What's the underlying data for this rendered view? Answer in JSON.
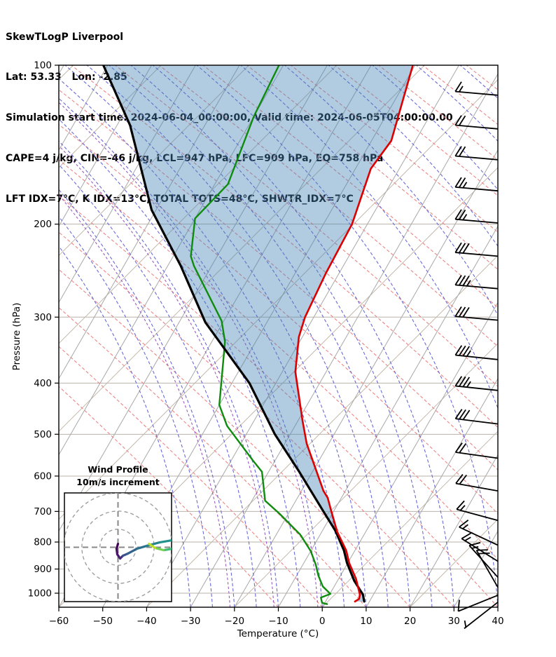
{
  "header": {
    "lines": [
      "SkewTLogP Liverpool",
      "Lat: 53.33   Lon: -2.85",
      "Simulation start time: 2024-06-04_00:00:00, Valid time: 2024-06-05T04:00:00.00",
      "CAPE=4 j/kg, CIN=-46 j/kg, LCL=947 hPa, LFC=909 hPa, EQ=758 hPa",
      "LFT IDX=7°C, K IDX=13°C, TOTAL TOTS=48°C, SHWTR_IDX=7°C"
    ]
  },
  "chart_data": {
    "type": "skewt-logp",
    "title": "SkewTLogP Liverpool",
    "xlabel": "Temperature (°C)",
    "ylabel": "Pressure (hPa)",
    "x_ticks": [
      -60,
      -50,
      -40,
      -30,
      -20,
      -10,
      0,
      10,
      20,
      30,
      40
    ],
    "p_ticks": [
      100,
      200,
      300,
      400,
      500,
      600,
      700,
      800,
      900,
      1000
    ],
    "xlim": [
      -60,
      40
    ],
    "plim": [
      100,
      1050
    ],
    "temperature_profile": [
      [
        100,
        -50.5
      ],
      [
        139,
        -45.5
      ],
      [
        157,
        -46.5
      ],
      [
        200,
        -43.5
      ],
      [
        248,
        -43
      ],
      [
        300,
        -42
      ],
      [
        327,
        -40.8
      ],
      [
        381,
        -37
      ],
      [
        471,
        -29
      ],
      [
        521,
        -25
      ],
      [
        640,
        -15
      ],
      [
        660,
        -13.1
      ],
      [
        700,
        -10.5
      ],
      [
        765,
        -6.5
      ],
      [
        830,
        -2
      ],
      [
        876,
        0.3
      ],
      [
        940,
        4
      ],
      [
        1006,
        6.9
      ],
      [
        1025,
        7.3
      ],
      [
        1037,
        6.7
      ]
    ],
    "dewpoint_profile": [
      [
        100,
        -81
      ],
      [
        125,
        -80
      ],
      [
        168,
        -77
      ],
      [
        195,
        -80
      ],
      [
        230,
        -76
      ],
      [
        240,
        -74
      ],
      [
        305,
        -60.5
      ],
      [
        334,
        -57
      ],
      [
        440,
        -50
      ],
      [
        482,
        -45.5
      ],
      [
        561,
        -35
      ],
      [
        589,
        -31.5
      ],
      [
        668,
        -27
      ],
      [
        707,
        -22
      ],
      [
        775,
        -14.5
      ],
      [
        832,
        -10
      ],
      [
        884,
        -7
      ],
      [
        925,
        -5.1
      ],
      [
        971,
        -2.6
      ],
      [
        1003,
        0.1
      ],
      [
        1019,
        -1.6
      ],
      [
        1043,
        -0.6
      ],
      [
        1049,
        0.7
      ]
    ],
    "parcel_profile": [
      [
        100,
        -121
      ],
      [
        130,
        -107
      ],
      [
        188,
        -91
      ],
      [
        240,
        -77
      ],
      [
        307,
        -64
      ],
      [
        400,
        -46
      ],
      [
        500,
        -33.5
      ],
      [
        589,
        -23
      ],
      [
        700,
        -12.3
      ],
      [
        762,
        -7
      ],
      [
        830,
        -2.5
      ],
      [
        876,
        -0.2
      ],
      [
        947,
        3.8
      ],
      [
        1006,
        7.6
      ],
      [
        1037,
        8.8
      ]
    ],
    "wind_barbs": [
      [
        114,
        15,
        5
      ],
      [
        132,
        20,
        5
      ],
      [
        151,
        20,
        5
      ],
      [
        173,
        25,
        5
      ],
      [
        199,
        25,
        5
      ],
      [
        230,
        30,
        5
      ],
      [
        265,
        35,
        5
      ],
      [
        304,
        30,
        5
      ],
      [
        361,
        35,
        6
      ],
      [
        413,
        35,
        6
      ],
      [
        478,
        30,
        7
      ],
      [
        555,
        20,
        8
      ],
      [
        640,
        20,
        10
      ],
      [
        728,
        15,
        15
      ],
      [
        811,
        15,
        25
      ],
      [
        870,
        15,
        32
      ],
      [
        933,
        15,
        48
      ],
      [
        975,
        20,
        60
      ],
      [
        1009,
        10,
        -22
      ],
      [
        1040,
        5,
        -38
      ]
    ],
    "hodograph": {
      "title_line1": "Wind Profile",
      "title_line2": "10m/s increment",
      "rings_ms": [
        10,
        20,
        30
      ],
      "path_points": [
        [
          0,
          1.9
        ],
        [
          -0.8,
          -0.8
        ],
        [
          -0.4,
          -3.9
        ],
        [
          1.2,
          -6.2
        ],
        [
          2.7,
          -4.7
        ],
        [
          5.4,
          -3.5
        ],
        [
          10.5,
          -0.8
        ],
        [
          16,
          0.8
        ],
        [
          23,
          2.7
        ],
        [
          30,
          3.9
        ],
        [
          32.3,
          1.9
        ],
        [
          30,
          -0.8
        ],
        [
          25.3,
          -1.6
        ],
        [
          20.6,
          -0.4
        ],
        [
          17.1,
          1.9
        ]
      ],
      "path_colors": [
        "#440154",
        "#470d60",
        "#48186a",
        "#462b7c",
        "#3b528b",
        "#33638d",
        "#2c728e",
        "#26828e",
        "#21918c",
        "#1fa088",
        "#28ae80",
        "#3fbc73",
        "#74d055",
        "#bddf26"
      ]
    },
    "colors": {
      "temperature": "#dd0000",
      "dewpoint": "#0e8c0e",
      "parcel": "#000000",
      "shade": "rgba(70,130,180,0.42)",
      "isotherm": "#a8a8a8",
      "skew_grid": "#c4b8ab",
      "dry_adiabat": "#ee8585",
      "moist_adiabat": "#6a6ad8",
      "mixing_ratio": "#9a5abf",
      "pressure_grid": "#b9b2a9"
    },
    "legend": "none",
    "grid": true
  }
}
